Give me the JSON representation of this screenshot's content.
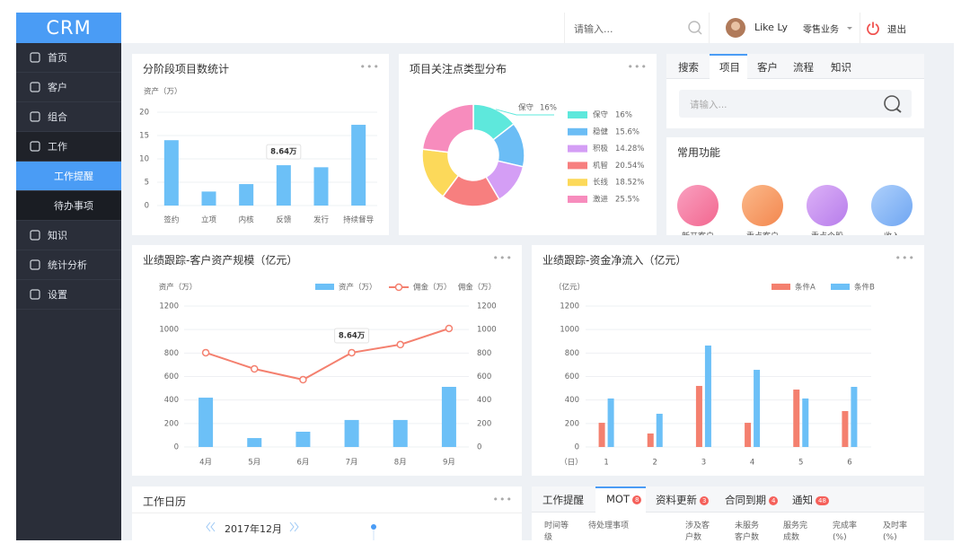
{
  "header": {
    "logo": "CRM",
    "search_placeholder": "请输入...",
    "user": "Like Ly",
    "business": "零售业务",
    "logout": "退出"
  },
  "menu": [
    "首页",
    "客户",
    "组合",
    "工作",
    "工作提醒",
    "待办事项",
    "知识",
    "统计分析",
    "设置"
  ],
  "charts": [
    {
      "type": "bar",
      "title": "分阶段项目数统计",
      "y_label": "资产（万）",
      "categories": [
        "签约",
        "立项",
        "内核",
        "反馈",
        "发行",
        "持续督导"
      ],
      "values": [
        14,
        3,
        4.6,
        8.64,
        8.2,
        17.3
      ],
      "color": "#6cc0f7",
      "ylim": [
        0,
        20
      ],
      "yticks": [
        0,
        5,
        10,
        15,
        20
      ],
      "grid": true,
      "tooltip": "8.64万"
    },
    {
      "type": "pie",
      "title": "项目关注点类型分布",
      "categories": [
        "保守",
        "稳健",
        "积极",
        "机智",
        "长线",
        "激进"
      ],
      "values": [
        16,
        15.6,
        14.28,
        20.54,
        18.52,
        25.5
      ],
      "value_labels": [
        "16%",
        "15.6%",
        "14.28%",
        "20.54%",
        "18.52%",
        "25.5%"
      ],
      "colors": [
        "#5ee8dc",
        "#6bbdf5",
        "#d49ef5",
        "#f77f7f",
        "#fcd95a",
        "#f78cbd"
      ]
    },
    {
      "type": "combo",
      "title": "业绩跟踪-客户资产规模（亿元）",
      "categories": [
        "4月",
        "5月",
        "6月",
        "7月",
        "8月",
        "9月"
      ],
      "series": [
        {
          "name": "资产（万）",
          "type": "bar",
          "color": "#6cc0f7",
          "values": [
            420,
            76,
            130,
            230,
            230,
            512
          ]
        },
        {
          "name": "佣金（万）",
          "type": "line",
          "axis": "y2",
          "color": "#f4806f",
          "values": [
            803,
            665,
            573,
            803,
            872,
            1009
          ]
        }
      ],
      "ylim": [
        0,
        1200
      ],
      "yticks": [
        0,
        200,
        400,
        600,
        800,
        1000,
        1200
      ],
      "y2lim": [
        0,
        1200
      ],
      "y2ticks": [
        0,
        200,
        400,
        600,
        800,
        1000,
        1200
      ],
      "grid": true,
      "tooltip": "8.64万"
    },
    {
      "type": "grouped_bar",
      "title": "业绩跟踪-资金净流入（亿元）",
      "y_label": "（亿元）",
      "x_label": "（日）",
      "categories": [
        "1",
        "2",
        "3",
        "4",
        "5",
        "6"
      ],
      "series": [
        {
          "name": "条件A",
          "color": "#f4806f",
          "values": [
            206,
            115,
            520,
            206,
            489,
            306
          ]
        },
        {
          "name": "条件B",
          "color": "#6cc0f7",
          "values": [
            413,
            283,
            864,
            657,
            413,
            512
          ]
        }
      ],
      "ylim": [
        0,
        1200
      ],
      "yticks": [
        0,
        200,
        400,
        600,
        800,
        1000,
        1200
      ],
      "grid": true
    }
  ],
  "search_panel": {
    "tabs": [
      "搜索",
      "项目",
      "客户",
      "流程",
      "知识"
    ],
    "placeholder": "请输入..."
  },
  "shortcuts": {
    "title": "常用功能",
    "items": [
      "新开客户",
      "重点客户",
      "重点个股",
      "收入"
    ]
  },
  "calendar": {
    "title": "工作日历",
    "month": "2017年12月"
  },
  "tasks": {
    "tabs": [
      {
        "label": "工作提醒"
      },
      {
        "label": "MOT",
        "badge": 8
      },
      {
        "label": "资料更新",
        "badge": 3
      },
      {
        "label": "合同到期",
        "badge": 4
      },
      {
        "label": "通知",
        "badge": 48
      }
    ],
    "columns": [
      "时间等级",
      "待处理事项",
      "涉及客户数",
      "未服务客户数",
      "服务完成数",
      "完成率(%)",
      "及时率(%)"
    ]
  }
}
